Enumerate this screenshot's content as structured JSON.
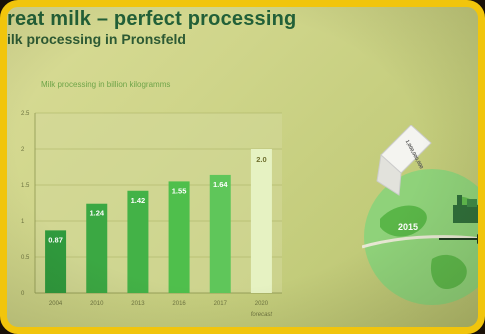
{
  "slide": {
    "title": "reat milk – perfect processing",
    "subtitle": "ilk processing in Pronsfeld",
    "caption": "Milk processing in billion kilogramms"
  },
  "illustration": {
    "year_label": "2015",
    "carton_label": "1,000,000,000",
    "icons": [
      "globe-icon",
      "milk-carton-icon",
      "factory-icon",
      "arrow-right-icon"
    ]
  },
  "chart_data": {
    "type": "bar",
    "title": "Milk processing in billion kilogramms",
    "categories": [
      "2004",
      "2010",
      "2013",
      "2016",
      "2017",
      "2020"
    ],
    "values": [
      0.87,
      1.24,
      1.42,
      1.55,
      1.64,
      2.0
    ],
    "value_labels": [
      "0.87",
      "1.24",
      "1.42",
      "1.55",
      "1.64",
      "2.0"
    ],
    "forecast_note": "forecast",
    "ylim": [
      0,
      2.5
    ],
    "yticks": [
      "0",
      "0.5",
      "1",
      "1.5",
      "2",
      "2.5"
    ],
    "grid": true,
    "colors": [
      "#2f9a3d",
      "#3ba843",
      "#43b247",
      "#4fbf4c",
      "#5fc65a",
      "#e6f2c2"
    ],
    "label_color": "#ffffff",
    "forecast_label_color": "#6f6f2e"
  }
}
